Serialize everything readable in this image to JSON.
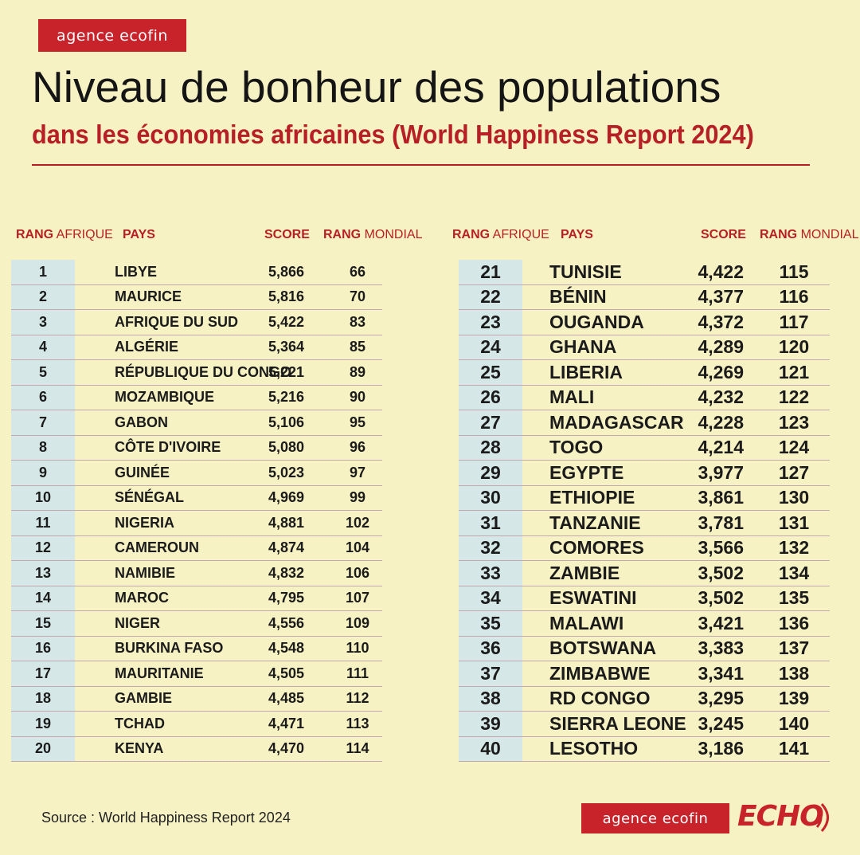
{
  "brand": {
    "name": "agence ecofin",
    "echo": "ECHO",
    "brand_color": "#c8222a"
  },
  "title": "Niveau de bonheur des populations",
  "subtitle": "dans les économies africaines (World Happiness Report 2024)",
  "headers": {
    "rang": "RANG",
    "afrique": "AFRIQUE",
    "pays": "PAYS",
    "score": "SCORE",
    "mondial": "MONDIAL"
  },
  "source": "Source : World Happiness Report 2024",
  "chart_data": {
    "type": "table",
    "title": "Niveau de bonheur des populations",
    "subtitle": "dans les économies africaines (World Happiness Report 2024)",
    "columns": [
      "RANG AFRIQUE",
      "PAYS",
      "SCORE",
      "RANG MONDIAL"
    ],
    "rows": [
      {
        "rank": "1",
        "country": "LIBYE",
        "score": "5,866",
        "world": "66"
      },
      {
        "rank": "2",
        "country": "MAURICE",
        "score": "5,816",
        "world": "70"
      },
      {
        "rank": "3",
        "country": "AFRIQUE DU SUD",
        "score": "5,422",
        "world": "83"
      },
      {
        "rank": "4",
        "country": "ALGÉRIE",
        "score": "5,364",
        "world": "85"
      },
      {
        "rank": "5",
        "country": "RÉPUBLIQUE DU CONGO",
        "score": "5,221",
        "world": "89"
      },
      {
        "rank": "6",
        "country": "MOZAMBIQUE",
        "score": "5,216",
        "world": "90"
      },
      {
        "rank": "7",
        "country": "GABON",
        "score": "5,106",
        "world": "95"
      },
      {
        "rank": "8",
        "country": "CÔTE D'IVOIRE",
        "score": "5,080",
        "world": "96"
      },
      {
        "rank": "9",
        "country": "GUINÉE",
        "score": "5,023",
        "world": "97"
      },
      {
        "rank": "10",
        "country": "SÉNÉGAL",
        "score": "4,969",
        "world": "99"
      },
      {
        "rank": "11",
        "country": "NIGERIA",
        "score": "4,881",
        "world": "102"
      },
      {
        "rank": "12",
        "country": "CAMEROUN",
        "score": "4,874",
        "world": "104"
      },
      {
        "rank": "13",
        "country": "NAMIBIE",
        "score": "4,832",
        "world": "106"
      },
      {
        "rank": "14",
        "country": "MAROC",
        "score": "4,795",
        "world": "107"
      },
      {
        "rank": "15",
        "country": "NIGER",
        "score": "4,556",
        "world": "109"
      },
      {
        "rank": "16",
        "country": "BURKINA FASO",
        "score": "4,548",
        "world": "110"
      },
      {
        "rank": "17",
        "country": "MAURITANIE",
        "score": "4,505",
        "world": "111"
      },
      {
        "rank": "18",
        "country": "GAMBIE",
        "score": "4,485",
        "world": "112"
      },
      {
        "rank": "19",
        "country": "TCHAD",
        "score": "4,471",
        "world": "113"
      },
      {
        "rank": "20",
        "country": "KENYA",
        "score": "4,470",
        "world": "114"
      },
      {
        "rank": "21",
        "country": "TUNISIE",
        "score": "4,422",
        "world": "115"
      },
      {
        "rank": "22",
        "country": "BÉNIN",
        "score": "4,377",
        "world": "116"
      },
      {
        "rank": "23",
        "country": "OUGANDA",
        "score": "4,372",
        "world": "117"
      },
      {
        "rank": "24",
        "country": "GHANA",
        "score": "4,289",
        "world": "120"
      },
      {
        "rank": "25",
        "country": "LIBERIA",
        "score": "4,269",
        "world": "121"
      },
      {
        "rank": "26",
        "country": "MALI",
        "score": "4,232",
        "world": "122"
      },
      {
        "rank": "27",
        "country": "MADAGASCAR",
        "score": "4,228",
        "world": "123"
      },
      {
        "rank": "28",
        "country": "TOGO",
        "score": "4,214",
        "world": "124"
      },
      {
        "rank": "29",
        "country": "EGYPTE",
        "score": "3,977",
        "world": "127"
      },
      {
        "rank": "30",
        "country": "ETHIOPIE",
        "score": "3,861",
        "world": "130"
      },
      {
        "rank": "31",
        "country": "TANZANIE",
        "score": "3,781",
        "world": "131"
      },
      {
        "rank": "32",
        "country": "COMORES",
        "score": "3,566",
        "world": "132"
      },
      {
        "rank": "33",
        "country": "ZAMBIE",
        "score": "3,502",
        "world": "134"
      },
      {
        "rank": "34",
        "country": "ESWATINI",
        "score": "3,502",
        "world": "135"
      },
      {
        "rank": "35",
        "country": "MALAWI",
        "score": "3,421",
        "world": "136"
      },
      {
        "rank": "36",
        "country": "BOTSWANA",
        "score": "3,383",
        "world": "137"
      },
      {
        "rank": "37",
        "country": "ZIMBABWE",
        "score": "3,341",
        "world": "138"
      },
      {
        "rank": "38",
        "country": "RD CONGO",
        "score": "3,295",
        "world": "139"
      },
      {
        "rank": "39",
        "country": "SIERRA LEONE",
        "score": "3,245",
        "world": "140"
      },
      {
        "rank": "40",
        "country": "LESOTHO",
        "score": "3,186",
        "world": "141"
      }
    ]
  }
}
